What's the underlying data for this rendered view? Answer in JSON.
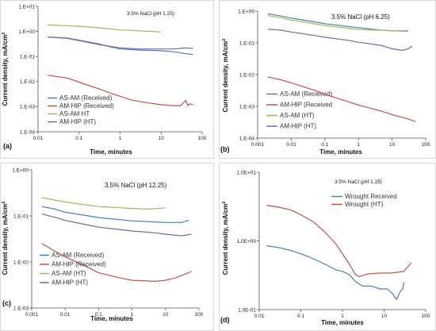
{
  "chart_data": [
    {
      "id": "a",
      "type": "line",
      "panel_label": "(a)",
      "condition": "3.5% NaCl (pH 1.25)",
      "xlabel": "Time, minutes",
      "ylabel": "Current density, mA/cm",
      "ylabel_sup": "2",
      "x_scale": "log",
      "y_scale": "log",
      "xlim": [
        0.01,
        100
      ],
      "ylim": [
        0.0001,
        10
      ],
      "x_ticks": [
        0.01,
        0.1,
        1,
        10,
        100
      ],
      "x_tick_labels": [
        "0.01",
        "0.1",
        "1",
        "10",
        "100"
      ],
      "y_ticks": [
        0.0001,
        0.001,
        0.01,
        0.1,
        1,
        10
      ],
      "y_tick_labels": [
        "1.E-04",
        "1.E-03",
        "1.E-02",
        "1.E-01",
        "1.E+00",
        "1.E+01"
      ],
      "grid": false,
      "legend_position": "bottom-left",
      "series": [
        {
          "name": "AS-AM (Received)",
          "color": "#4a7ebb",
          "points": [
            [
              0.017,
              0.6
            ],
            [
              0.05,
              0.55
            ],
            [
              0.1,
              0.45
            ],
            [
              0.3,
              0.32
            ],
            [
              0.6,
              0.24
            ],
            [
              1,
              0.2
            ],
            [
              3,
              0.18
            ],
            [
              10,
              0.17
            ],
            [
              20,
              0.155
            ],
            [
              40,
              0.13
            ],
            [
              60,
              0.12
            ]
          ]
        },
        {
          "name": "AM-HIP (Received)",
          "color": "#c0504d",
          "points": [
            [
              0.017,
              0.018
            ],
            [
              0.05,
              0.014
            ],
            [
              0.1,
              0.0095
            ],
            [
              0.3,
              0.0052
            ],
            [
              0.6,
              0.0034
            ],
            [
              1,
              0.0026
            ],
            [
              2,
              0.0018
            ],
            [
              5,
              0.0014
            ],
            [
              10,
              0.0012
            ],
            [
              20,
              0.0011
            ],
            [
              30,
              0.0011
            ],
            [
              40,
              0.0018
            ],
            [
              45,
              0.0011
            ],
            [
              50,
              0.0013
            ],
            [
              60,
              0.0012
            ]
          ]
        },
        {
          "name": "AS-AM HT",
          "color": "#9bbb59",
          "points": [
            [
              0.017,
              1.8
            ],
            [
              0.05,
              1.7
            ],
            [
              0.1,
              1.6
            ],
            [
              0.3,
              1.4
            ],
            [
              0.6,
              1.25
            ],
            [
              1,
              1.15
            ],
            [
              3,
              1.05
            ],
            [
              6,
              1.0
            ],
            [
              10,
              0.95
            ]
          ]
        },
        {
          "name": "AM-HIP (HT)",
          "color": "#8064a2",
          "points": [
            [
              0.017,
              0.6
            ],
            [
              0.05,
              0.53
            ],
            [
              0.1,
              0.43
            ],
            [
              0.3,
              0.3
            ],
            [
              1,
              0.22
            ],
            [
              3,
              0.2
            ],
            [
              10,
              0.2
            ],
            [
              20,
              0.2
            ],
            [
              40,
              0.22
            ],
            [
              60,
              0.21
            ]
          ]
        }
      ]
    },
    {
      "id": "b",
      "type": "line",
      "panel_label": "(b)",
      "condition": "3.5% NaCl (pH 6.25)",
      "xlabel": "Time, minutes",
      "ylabel": "Current density, mA/cm",
      "ylabel_sup": "2",
      "x_scale": "log",
      "y_scale": "log",
      "xlim": [
        0.001,
        100
      ],
      "ylim": [
        0.0001,
        1
      ],
      "x_ticks": [
        0.001,
        0.01,
        0.1,
        1,
        10,
        100
      ],
      "x_tick_labels": [
        "0.001",
        "0.01",
        "0.1",
        "1",
        "10",
        "100"
      ],
      "y_ticks": [
        0.0001,
        0.001,
        0.01,
        0.1,
        1
      ],
      "y_tick_labels": [
        "1.E-04",
        "1.E-03",
        "1.E-02",
        "1.E-01",
        "1.E+00"
      ],
      "grid": false,
      "legend_position": "bottom-left",
      "series": [
        {
          "name": "AS-AM (Received)",
          "color": "#4a7ebb",
          "points": [
            [
              0.002,
              0.82
            ],
            [
              0.005,
              0.7
            ],
            [
              0.01,
              0.6
            ],
            [
              0.05,
              0.46
            ],
            [
              0.1,
              0.4
            ],
            [
              0.5,
              0.33
            ],
            [
              1,
              0.3
            ],
            [
              5,
              0.25
            ],
            [
              10,
              0.24
            ],
            [
              30,
              0.24
            ]
          ]
        },
        {
          "name": "AM-HIP (Received",
          "color": "#c0504d",
          "points": [
            [
              0.002,
              0.0085
            ],
            [
              0.005,
              0.0068
            ],
            [
              0.01,
              0.0055
            ],
            [
              0.05,
              0.0032
            ],
            [
              0.1,
              0.0024
            ],
            [
              0.5,
              0.0014
            ],
            [
              1,
              0.0011
            ],
            [
              5,
              0.0007
            ],
            [
              10,
              0.00055
            ],
            [
              30,
              0.0004
            ],
            [
              50,
              0.00033
            ]
          ]
        },
        {
          "name": "AS-AM (HT)",
          "color": "#9bbb59",
          "points": [
            [
              0.002,
              0.72
            ],
            [
              0.005,
              0.62
            ],
            [
              0.01,
              0.52
            ],
            [
              0.05,
              0.4
            ],
            [
              0.1,
              0.35
            ],
            [
              0.5,
              0.29
            ],
            [
              1,
              0.26
            ],
            [
              5,
              0.25
            ],
            [
              10,
              0.24
            ],
            [
              30,
              0.23
            ]
          ]
        },
        {
          "name": "AM-HIP (HT)",
          "color": "#8064a2",
          "points": [
            [
              0.002,
              0.27
            ],
            [
              0.005,
              0.25
            ],
            [
              0.01,
              0.22
            ],
            [
              0.05,
              0.17
            ],
            [
              0.1,
              0.15
            ],
            [
              0.5,
              0.12
            ],
            [
              1,
              0.105
            ],
            [
              5,
              0.082
            ],
            [
              10,
              0.065
            ],
            [
              20,
              0.058
            ],
            [
              30,
              0.065
            ],
            [
              40,
              0.08
            ]
          ]
        }
      ]
    },
    {
      "id": "c",
      "type": "line",
      "panel_label": "(c)",
      "condition": "3.5% NaCl (pH 12.25)",
      "xlabel": "Time, minutes",
      "ylabel": "Current density, mA/cm",
      "ylabel_sup": "2",
      "x_scale": "log",
      "y_scale": "log",
      "xlim": [
        0.001,
        100
      ],
      "ylim": [
        0.001,
        1
      ],
      "x_ticks": [
        0.001,
        0.01,
        0.1,
        1,
        10,
        100
      ],
      "x_tick_labels": [
        "0.001",
        "0.01",
        "0.1",
        "1",
        "10",
        "100"
      ],
      "y_ticks": [
        0.001,
        0.01,
        0.1,
        1
      ],
      "y_tick_labels": [
        "1.E-03",
        "1.E-02",
        "1.E-01",
        "1.E+00"
      ],
      "grid": false,
      "legend_position": "bottom-left",
      "series": [
        {
          "name": "AS-AM (Received)",
          "color": "#4a7ebb",
          "points": [
            [
              0.002,
              0.16
            ],
            [
              0.005,
              0.14
            ],
            [
              0.01,
              0.12
            ],
            [
              0.05,
              0.1
            ],
            [
              0.1,
              0.092
            ],
            [
              0.5,
              0.082
            ],
            [
              1,
              0.078
            ],
            [
              5,
              0.074
            ],
            [
              10,
              0.072
            ],
            [
              30,
              0.072
            ],
            [
              50,
              0.08
            ]
          ]
        },
        {
          "name": "AM-HIP (Received)",
          "color": "#c0504d",
          "points": [
            [
              0.002,
              0.025
            ],
            [
              0.005,
              0.017
            ],
            [
              0.01,
              0.013
            ],
            [
              0.05,
              0.0075
            ],
            [
              0.1,
              0.0058
            ],
            [
              0.5,
              0.0044
            ],
            [
              1,
              0.004
            ],
            [
              5,
              0.0038
            ],
            [
              10,
              0.004
            ],
            [
              20,
              0.0045
            ],
            [
              40,
              0.0055
            ],
            [
              60,
              0.0062
            ]
          ]
        },
        {
          "name": "AS-AM (HT)",
          "color": "#9bbb59",
          "points": [
            [
              0.002,
              0.25
            ],
            [
              0.005,
              0.22
            ],
            [
              0.01,
              0.2
            ],
            [
              0.05,
              0.17
            ],
            [
              0.1,
              0.16
            ],
            [
              0.5,
              0.15
            ],
            [
              1,
              0.145
            ],
            [
              3,
              0.14
            ],
            [
              10,
              0.15
            ]
          ]
        },
        {
          "name": "AM-HIP (HT)",
          "color": "#8064a2",
          "points": [
            [
              0.002,
              0.11
            ],
            [
              0.005,
              0.093
            ],
            [
              0.01,
              0.08
            ],
            [
              0.05,
              0.063
            ],
            [
              0.1,
              0.057
            ],
            [
              0.5,
              0.05
            ],
            [
              1,
              0.047
            ],
            [
              5,
              0.043
            ],
            [
              10,
              0.04
            ],
            [
              30,
              0.037
            ],
            [
              60,
              0.04
            ]
          ]
        }
      ]
    },
    {
      "id": "d",
      "type": "line",
      "panel_label": "(d)",
      "condition": "3.5% NaCl (pH 1.25)",
      "xlabel": "Time, minutes",
      "ylabel": "Current density, mA/cm",
      "ylabel_sup": "2",
      "x_scale": "log",
      "y_scale": "log",
      "xlim": [
        0.01,
        100
      ],
      "ylim": [
        0.1,
        10
      ],
      "x_ticks": [
        0.01,
        0.1,
        1,
        10,
        100
      ],
      "x_tick_labels": [
        "0.01",
        "0.1",
        "1",
        "10",
        "100"
      ],
      "y_ticks": [
        0.1,
        1,
        10
      ],
      "y_tick_labels": [
        "1.0E-01",
        "1.0E+00",
        "1.0E+01"
      ],
      "grid": false,
      "legend_position": "top-right",
      "series": [
        {
          "name": "Wrought Received",
          "color": "#4a7ebb",
          "points": [
            [
              0.015,
              0.85
            ],
            [
              0.03,
              0.8
            ],
            [
              0.06,
              0.72
            ],
            [
              0.1,
              0.65
            ],
            [
              0.2,
              0.55
            ],
            [
              0.4,
              0.45
            ],
            [
              0.7,
              0.38
            ],
            [
              1,
              0.36
            ],
            [
              1.5,
              0.32
            ],
            [
              2,
              0.26
            ],
            [
              3,
              0.22
            ],
            [
              5,
              0.22
            ],
            [
              8,
              0.2
            ],
            [
              12,
              0.2
            ],
            [
              16,
              0.17
            ],
            [
              20,
              0.14
            ],
            [
              24,
              0.18
            ],
            [
              28,
              0.2
            ],
            [
              30,
              0.25
            ]
          ]
        },
        {
          "name": "Wrought (HT)",
          "color": "#c0504d",
          "points": [
            [
              0.015,
              3.3
            ],
            [
              0.03,
              3.1
            ],
            [
              0.06,
              2.8
            ],
            [
              0.1,
              2.4
            ],
            [
              0.2,
              1.9
            ],
            [
              0.4,
              1.3
            ],
            [
              0.7,
              0.9
            ],
            [
              1,
              0.65
            ],
            [
              1.5,
              0.45
            ],
            [
              2,
              0.33
            ],
            [
              2.5,
              0.3
            ],
            [
              4,
              0.33
            ],
            [
              8,
              0.34
            ],
            [
              15,
              0.34
            ],
            [
              30,
              0.36
            ],
            [
              45,
              0.48
            ]
          ]
        }
      ]
    }
  ]
}
